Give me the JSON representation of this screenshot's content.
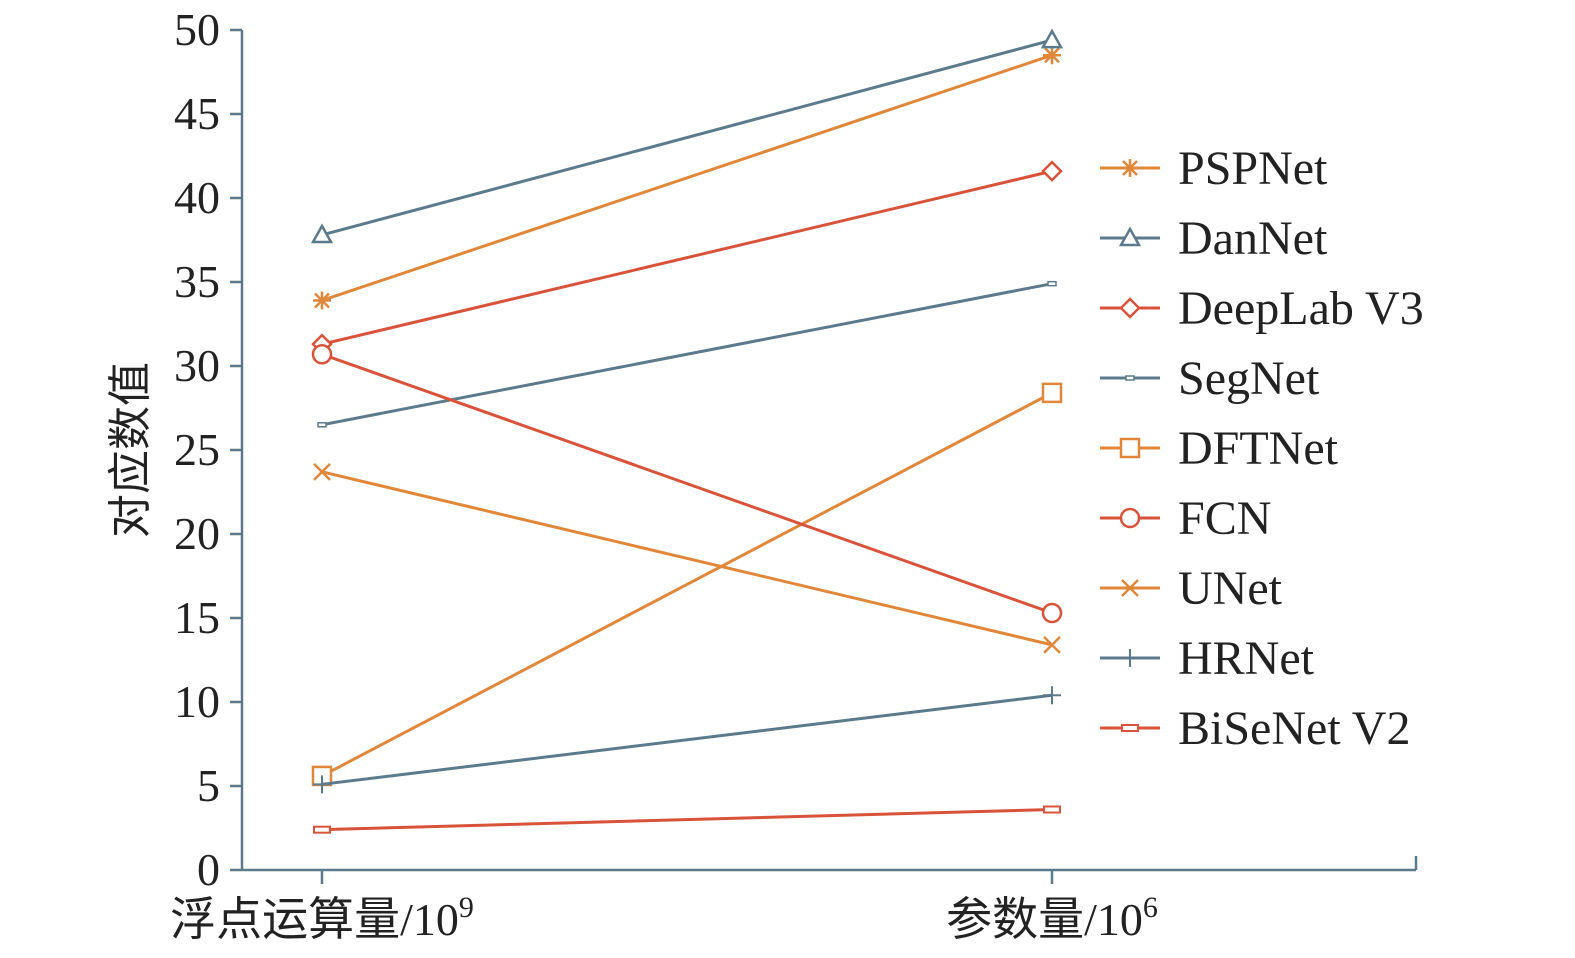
{
  "chart_data": {
    "type": "line",
    "title": "",
    "xlabel": "",
    "ylabel": "对应数值",
    "categories": [
      "浮点运算量/10^9",
      "参数量/10^6"
    ],
    "category_labels": [
      {
        "base": "浮点运算量/10",
        "exp": "9"
      },
      {
        "base": "参数量/10",
        "exp": "6"
      }
    ],
    "ylim": [
      0,
      50
    ],
    "yticks": [
      0,
      5,
      10,
      15,
      20,
      25,
      30,
      35,
      40,
      45,
      50
    ],
    "grid": false,
    "legend_position": "right",
    "series": [
      {
        "name": "PSPNet",
        "values": [
          33.9,
          48.5
        ],
        "color": "#e0873a",
        "marker": "asterisk"
      },
      {
        "name": "DanNet",
        "values": [
          37.8,
          49.4
        ],
        "color": "#5b7a8c",
        "marker": "triangle"
      },
      {
        "name": "DeepLab V3",
        "values": [
          31.3,
          41.6
        ],
        "color": "#d8533a",
        "marker": "diamond"
      },
      {
        "name": "SegNet",
        "values": [
          26.5,
          34.9
        ],
        "color": "#5b7a8c",
        "marker": "dash"
      },
      {
        "name": "DFTNet",
        "values": [
          5.6,
          28.4
        ],
        "color": "#e0873a",
        "marker": "square"
      },
      {
        "name": "FCN",
        "values": [
          30.7,
          15.3
        ],
        "color": "#d8533a",
        "marker": "circle"
      },
      {
        "name": "UNet",
        "values": [
          23.7,
          13.4
        ],
        "color": "#e0873a",
        "marker": "x"
      },
      {
        "name": "HRNet",
        "values": [
          5.1,
          10.4
        ],
        "color": "#5b7a8c",
        "marker": "plus"
      },
      {
        "name": "BiSeNet V2",
        "values": [
          2.4,
          3.6
        ],
        "color": "#d8533a",
        "marker": "rect"
      }
    ]
  }
}
